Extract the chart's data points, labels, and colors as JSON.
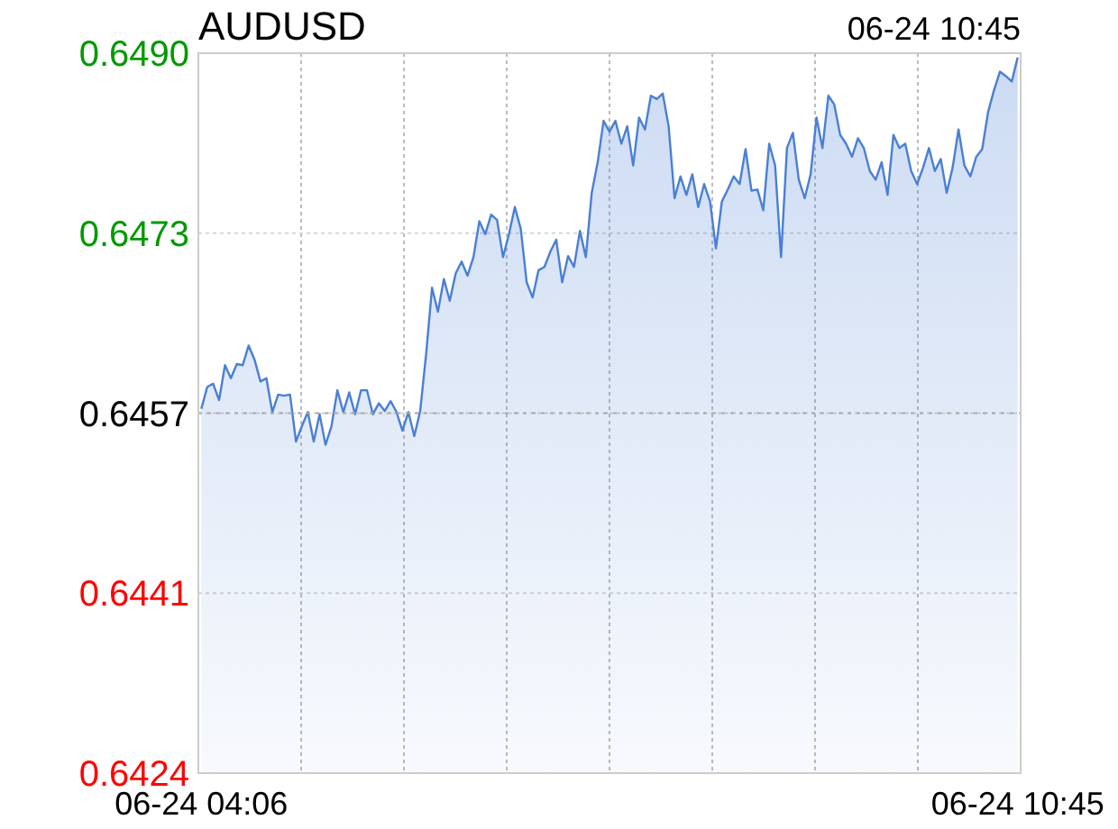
{
  "chart_data": {
    "type": "area",
    "title": "AUDUSD",
    "annotations": [
      "06-24 10:45"
    ],
    "categories": [
      "06-24 04:06",
      null,
      null,
      null,
      null,
      null,
      null,
      null,
      null,
      null,
      null,
      null,
      null,
      null,
      null,
      null,
      null,
      null,
      null,
      null,
      null,
      null,
      null,
      null,
      null,
      null,
      null,
      null,
      null,
      null,
      null,
      null,
      null,
      null,
      null,
      null,
      null,
      null,
      null,
      null,
      null,
      null,
      null,
      null,
      null,
      null,
      null,
      null,
      null,
      null,
      null,
      null,
      null,
      null,
      null,
      null,
      null,
      null,
      null,
      null,
      null,
      null,
      null,
      null,
      null,
      null,
      null,
      null,
      null,
      null,
      null,
      null,
      null,
      null,
      null,
      null,
      null,
      null,
      null,
      null,
      null,
      null,
      null,
      null,
      null,
      null,
      null,
      null,
      null,
      null,
      null,
      null,
      null,
      null,
      null,
      null,
      null,
      null,
      null,
      null,
      null,
      null,
      null,
      null,
      null,
      null,
      null,
      null,
      null,
      null,
      null,
      null,
      null,
      null,
      null,
      null,
      null,
      null,
      null,
      null,
      null,
      null,
      null,
      null,
      null,
      null,
      null,
      null,
      null,
      null,
      null,
      null,
      null,
      null,
      null,
      null,
      null,
      null,
      "06-24 10:45"
    ],
    "series": [
      {
        "color": "#4a7fd4",
        "values": [
          0.64574,
          0.64594,
          0.64597,
          0.64582,
          0.64614,
          0.64602,
          0.64615,
          0.64614,
          0.64632,
          0.64619,
          0.64599,
          0.64602,
          0.64571,
          0.64587,
          0.64586,
          0.64587,
          0.64544,
          0.64558,
          0.64571,
          0.64544,
          0.64569,
          0.64541,
          0.64558,
          0.64591,
          0.64571,
          0.64589,
          0.64569,
          0.64591,
          0.64591,
          0.64569,
          0.64579,
          0.64572,
          0.64581,
          0.64571,
          0.64554,
          0.64571,
          0.64549,
          0.64572,
          0.64624,
          0.64685,
          0.64663,
          0.64693,
          0.64673,
          0.64698,
          0.64709,
          0.64696,
          0.64713,
          0.64746,
          0.64734,
          0.64752,
          0.64747,
          0.64713,
          0.64734,
          0.64759,
          0.64739,
          0.6469,
          0.64676,
          0.64701,
          0.64704,
          0.64718,
          0.64729,
          0.6469,
          0.64714,
          0.64704,
          0.64737,
          0.64713,
          0.64772,
          0.648,
          0.64838,
          0.64828,
          0.64838,
          0.64817,
          0.64833,
          0.64797,
          0.64841,
          0.6483,
          0.64861,
          0.64858,
          0.64863,
          0.64833,
          0.64767,
          0.64787,
          0.6477,
          0.64789,
          0.64759,
          0.6478,
          0.64764,
          0.64721,
          0.64764,
          0.64775,
          0.64787,
          0.6478,
          0.64812,
          0.64774,
          0.64775,
          0.64756,
          0.64817,
          0.64797,
          0.64713,
          0.64813,
          0.64827,
          0.64784,
          0.64767,
          0.64789,
          0.64841,
          0.64813,
          0.64861,
          0.64853,
          0.64825,
          0.64817,
          0.64805,
          0.64822,
          0.64813,
          0.64792,
          0.64784,
          0.648,
          0.6477,
          0.64825,
          0.64813,
          0.64817,
          0.64792,
          0.6478,
          0.64795,
          0.64813,
          0.64792,
          0.64803,
          0.64772,
          0.64795,
          0.6483,
          0.64797,
          0.64787,
          0.64805,
          0.64812,
          0.64846,
          0.64866,
          0.64883,
          0.64879,
          0.64874,
          0.64896
        ]
      }
    ],
    "ylim": [
      0.6424,
      0.649
    ],
    "yticks": [
      {
        "value": 0.649,
        "label": "0.6490"
      },
      {
        "value": 0.64735,
        "label": "0.6473"
      },
      {
        "value": 0.6457,
        "label": "0.6457"
      },
      {
        "value": 0.64405,
        "label": "0.6441"
      },
      {
        "value": 0.6424,
        "label": "0.6424"
      }
    ],
    "ref_lines": [
      {
        "axis": "y",
        "value": 0.6457,
        "color": "#aaaaaa",
        "line_style": "dotted"
      }
    ],
    "grid": true
  }
}
